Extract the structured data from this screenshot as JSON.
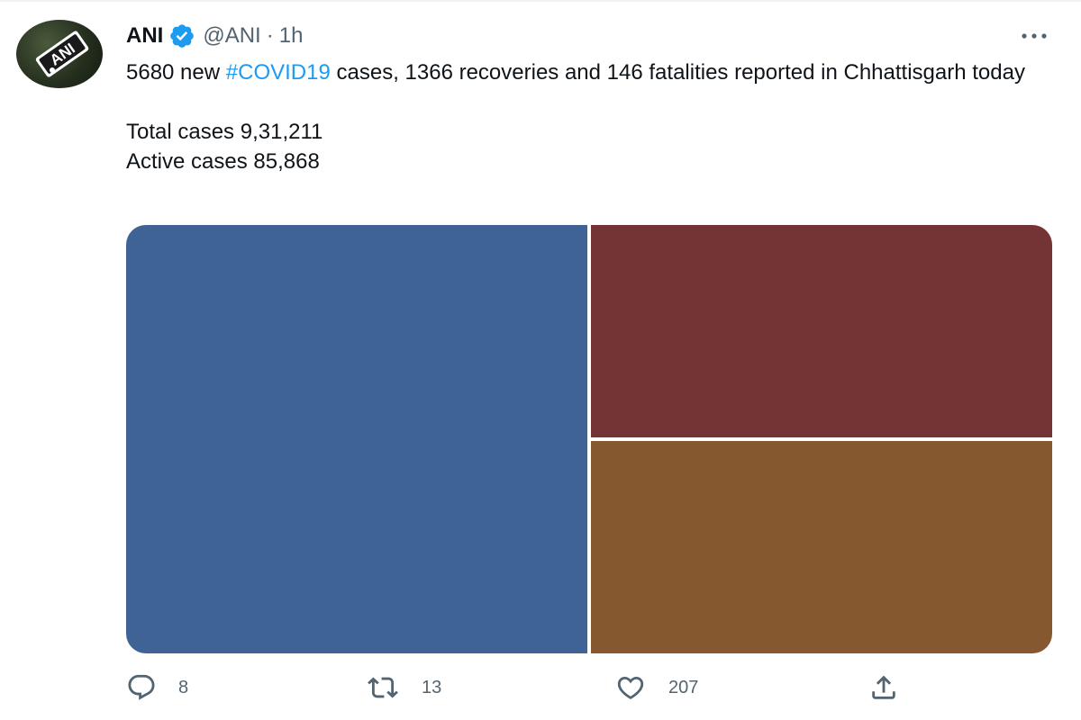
{
  "tweet": {
    "display_name": "ANI",
    "verified": true,
    "handle": "@ANI",
    "separator": "·",
    "time": "1h",
    "avatar_icon": "ani-logo",
    "avatar_logo_text": "ANI",
    "more_icon": "more-horizontal-icon",
    "text": {
      "line_pre": "5680 new ",
      "hashtag": "#COVID19",
      "line_post": " cases, 1366 recoveries and 146 fatalities reported in Chhattisgarh today",
      "total_cases": "Total cases 9,31,211",
      "active_cases": "Active cases 85,868"
    },
    "media": {
      "tile_colors": [
        "#3f6395",
        "#743335",
        "#855830"
      ]
    },
    "actions": {
      "reply": {
        "icon": "reply-icon",
        "count": "8"
      },
      "retweet": {
        "icon": "retweet-icon",
        "count": "13"
      },
      "like": {
        "icon": "heart-icon",
        "count": "207"
      },
      "share": {
        "icon": "share-icon"
      }
    }
  },
  "colors": {
    "text_primary": "#0f1419",
    "text_secondary": "#536471",
    "accent": "#1d9bf0"
  }
}
